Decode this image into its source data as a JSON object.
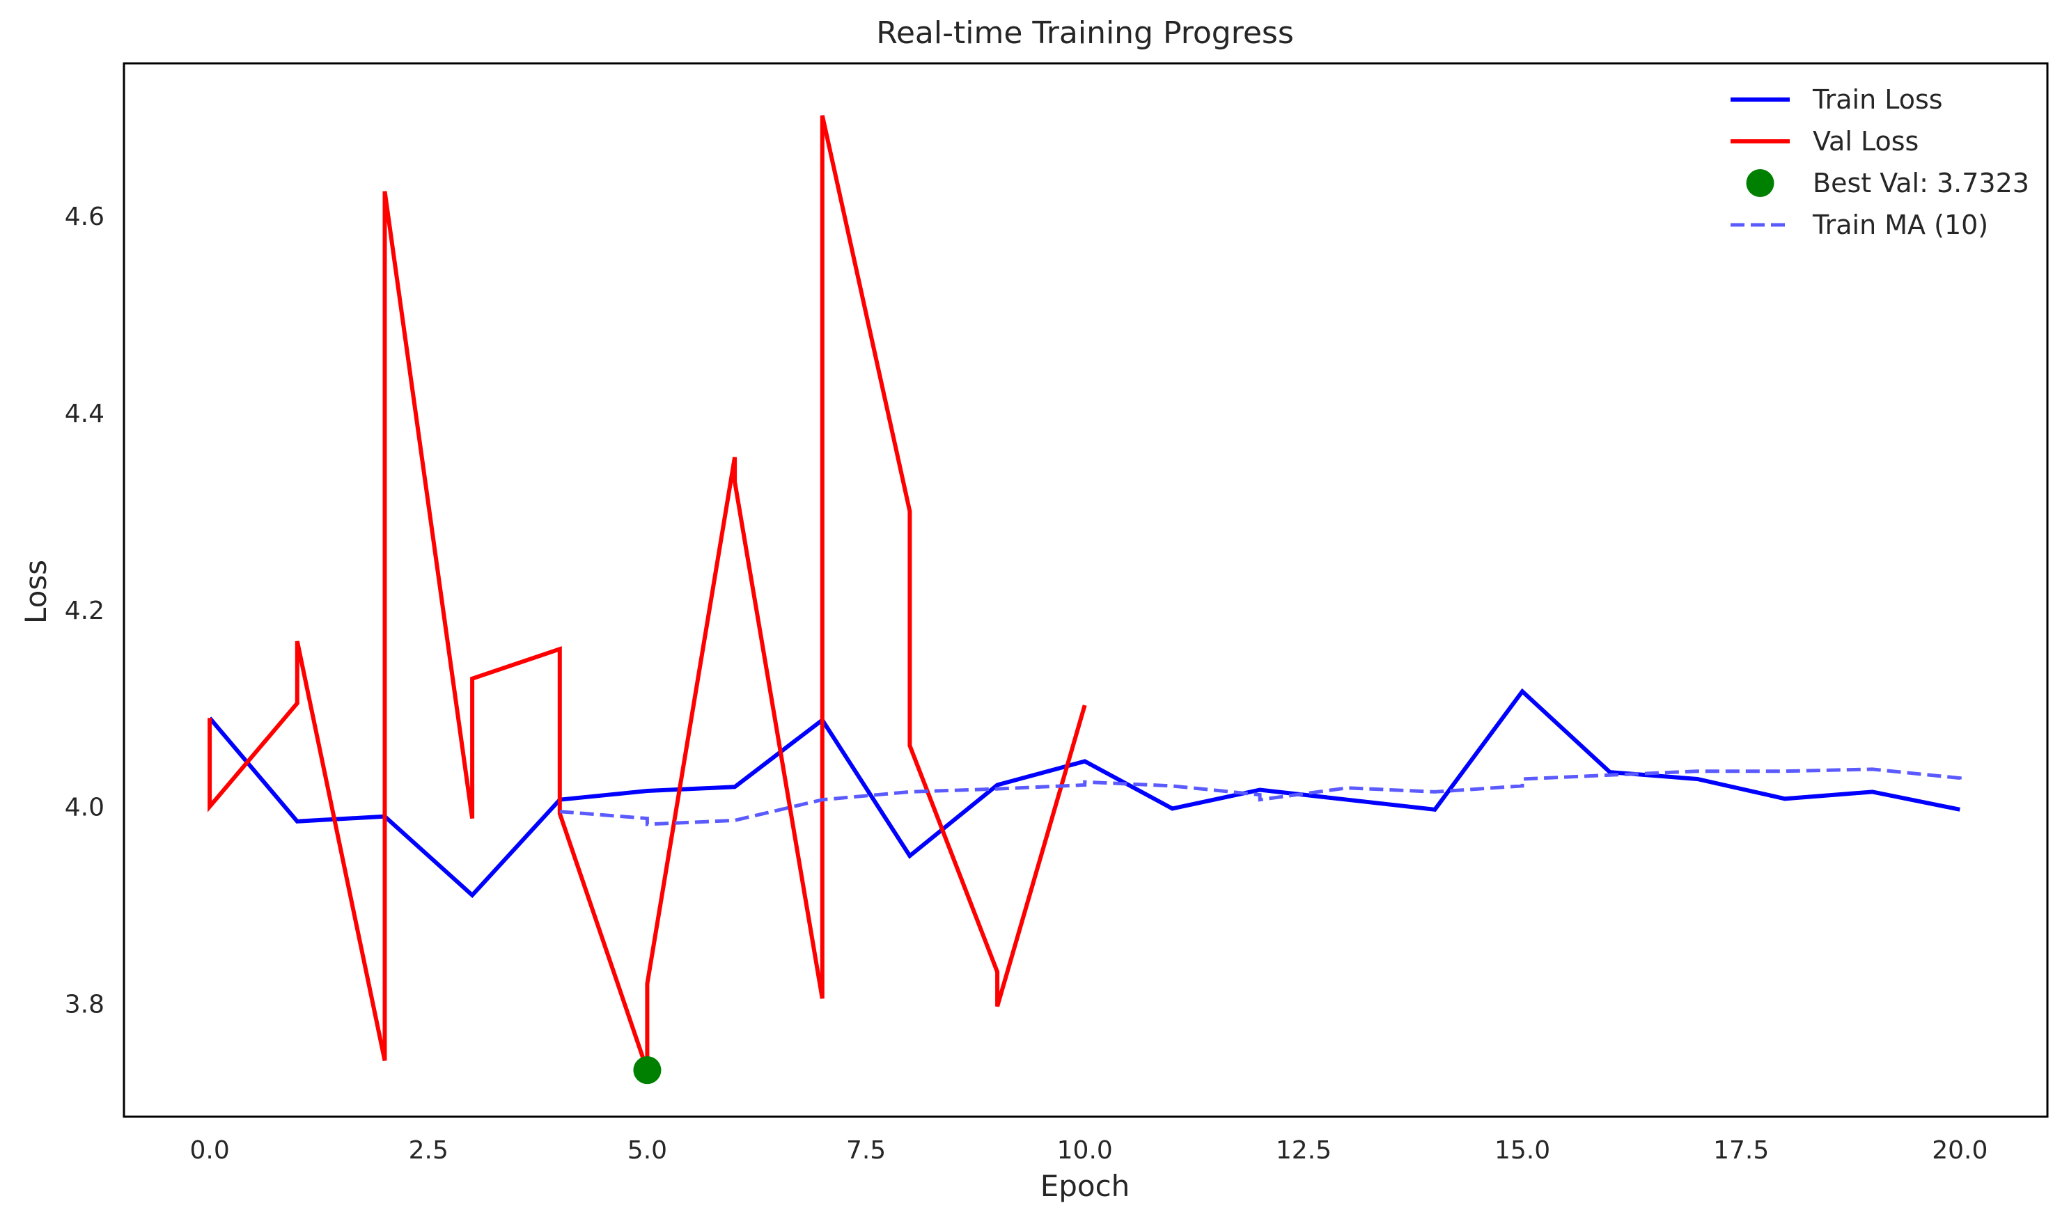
{
  "chart_data": {
    "type": "line",
    "title": "Real-time Training Progress",
    "xlabel": "Epoch",
    "ylabel": "Loss",
    "xlim": [
      -0.98,
      21.0
    ],
    "ylim": [
      3.685,
      4.755
    ],
    "xticks": [
      0.0,
      2.5,
      5.0,
      7.5,
      10.0,
      12.5,
      15.0,
      17.5,
      20.0
    ],
    "xtick_labels": [
      "0.0",
      "2.5",
      "5.0",
      "7.5",
      "10.0",
      "12.5",
      "15.0",
      "17.5",
      "20.0"
    ],
    "yticks": [
      3.8,
      4.0,
      4.2,
      4.4,
      4.6
    ],
    "ytick_labels": [
      "3.8",
      "4.0",
      "4.2",
      "4.4",
      "4.6"
    ],
    "grid": false,
    "legend_position": "top-right",
    "series": [
      {
        "name": "Train Loss",
        "color": "#0000ff",
        "style": "solid",
        "points": [
          [
            0,
            4.09
          ],
          [
            1,
            3.985
          ],
          [
            2,
            3.99
          ],
          [
            3,
            3.91
          ],
          [
            4,
            4.007
          ],
          [
            5,
            4.016
          ],
          [
            6,
            4.02
          ],
          [
            7,
            4.088
          ],
          [
            8,
            3.95
          ],
          [
            9,
            4.022
          ],
          [
            10,
            4.046
          ],
          [
            11,
            3.998
          ],
          [
            12,
            4.017
          ],
          [
            13,
            4.007
          ],
          [
            14,
            3.997
          ],
          [
            15,
            4.117
          ],
          [
            16,
            4.035
          ],
          [
            17,
            4.028
          ],
          [
            18,
            4.008
          ],
          [
            19,
            4.015
          ],
          [
            20,
            3.997
          ]
        ]
      },
      {
        "name": "Val Loss",
        "color": "#ff0000",
        "style": "solid",
        "points": [
          [
            0,
            4.09
          ],
          [
            0,
            4.0
          ],
          [
            1,
            4.105
          ],
          [
            1,
            4.168
          ],
          [
            2,
            3.742
          ],
          [
            2,
            4.625
          ],
          [
            3,
            3.988
          ],
          [
            3,
            4.13
          ],
          [
            4,
            4.16
          ],
          [
            4,
            3.993
          ],
          [
            5,
            3.732
          ],
          [
            5,
            3.82
          ],
          [
            6,
            4.355
          ],
          [
            6,
            4.33
          ],
          [
            7,
            3.805
          ],
          [
            7,
            4.702
          ],
          [
            8,
            4.3
          ],
          [
            8,
            4.062
          ],
          [
            9,
            3.832
          ],
          [
            9,
            3.797
          ],
          [
            10,
            4.103
          ]
        ]
      },
      {
        "name": "Train MA (10)",
        "color": "#5a5aff",
        "style": "dashed",
        "points": [
          [
            4,
            3.995
          ],
          [
            5,
            3.988
          ],
          [
            5,
            3.982
          ],
          [
            6,
            3.986
          ],
          [
            7,
            4.007
          ],
          [
            8,
            4.015
          ],
          [
            9,
            4.018
          ],
          [
            10,
            4.022
          ],
          [
            10,
            4.025
          ],
          [
            11,
            4.021
          ],
          [
            12,
            4.012
          ],
          [
            12,
            4.007
          ],
          [
            13,
            4.019
          ],
          [
            14,
            4.015
          ],
          [
            15,
            4.021
          ],
          [
            15,
            4.028
          ],
          [
            16,
            4.032
          ],
          [
            17,
            4.036
          ],
          [
            18,
            4.036
          ],
          [
            19,
            4.038
          ],
          [
            20,
            4.029
          ],
          [
            20,
            4.022
          ]
        ]
      }
    ],
    "best_point": {
      "label": "Best Val: 3.7323",
      "x": 5,
      "y": 3.7323,
      "color": "#008000"
    }
  }
}
